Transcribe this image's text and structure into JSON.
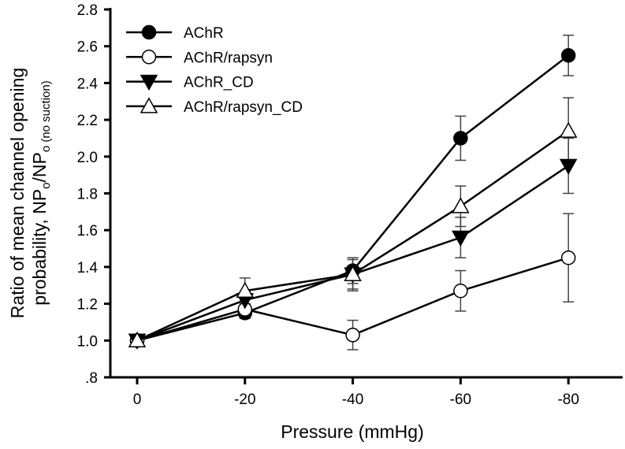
{
  "chart_data": {
    "type": "line",
    "title": "",
    "xlabel": "Pressure (mmHg)",
    "ylabel_line1": "Ratio of mean channel opening",
    "ylabel_line2": {
      "text1": "probability, NP",
      "sub1": "o",
      "slash": "/NP",
      "sub2": "o (no suction)"
    },
    "x": [
      0,
      -20,
      -40,
      -60,
      -80
    ],
    "x_tick_labels": [
      "0",
      "-20",
      "-40",
      "-60",
      "-80"
    ],
    "ylim": [
      0.8,
      2.8
    ],
    "y_ticks": [
      0.8,
      1.0,
      1.2,
      1.4,
      1.6,
      1.8,
      2.0,
      2.2,
      2.4,
      2.6,
      2.8
    ],
    "y_tick_labels": [
      ".8",
      "1.0",
      "1.2",
      "1.4",
      "1.6",
      "1.8",
      "2.0",
      "2.2",
      "2.4",
      "2.6",
      "2.8"
    ],
    "grid": false,
    "legend_position": "top-left",
    "series": [
      {
        "name": "AChR",
        "marker": "filled-circle",
        "values": [
          1.0,
          1.15,
          1.38,
          2.1,
          2.55
        ],
        "errors": [
          0,
          0.03,
          0.07,
          0.12,
          0.11
        ]
      },
      {
        "name": "AChR/rapsyn",
        "marker": "open-circle",
        "values": [
          1.0,
          1.17,
          1.03,
          1.27,
          1.45
        ],
        "errors": [
          0,
          0.03,
          0.08,
          0.11,
          0.24
        ]
      },
      {
        "name": "AChR_CD",
        "marker": "filled-down-triangle",
        "values": [
          1.0,
          1.22,
          1.36,
          1.56,
          1.95
        ],
        "errors": [
          0,
          0.03,
          0.09,
          0.11,
          0.15
        ]
      },
      {
        "name": "AChR/rapsyn_CD",
        "marker": "open-up-triangle",
        "values": [
          1.0,
          1.27,
          1.36,
          1.73,
          2.14
        ],
        "errors": [
          0,
          0.07,
          0.08,
          0.11,
          0.18
        ]
      }
    ]
  }
}
